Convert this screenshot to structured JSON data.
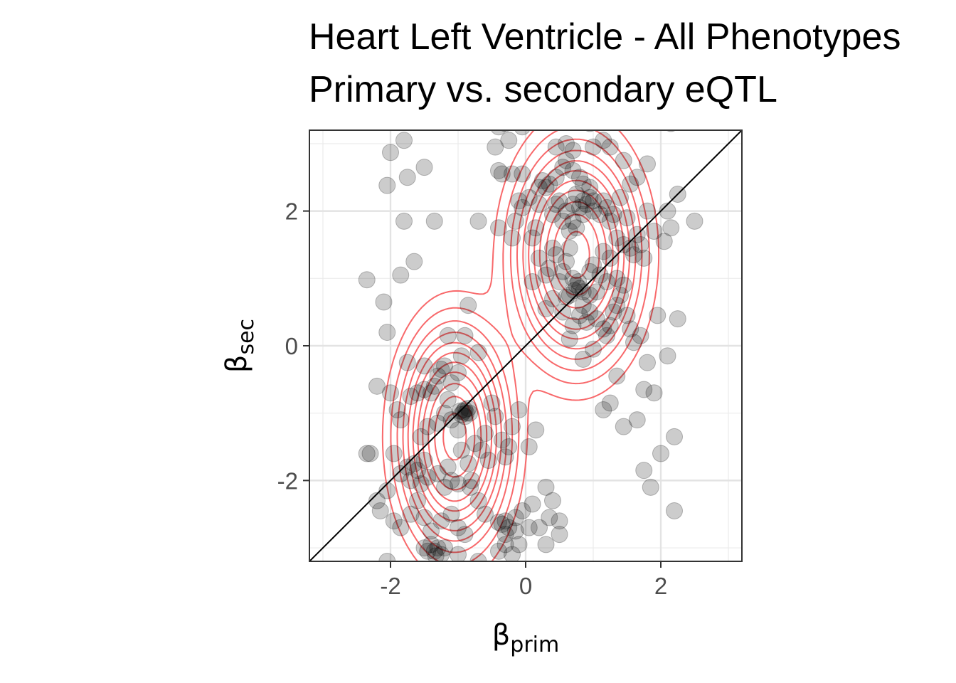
{
  "title": "Heart Left Ventricle - All Phenotypes",
  "subtitle": "Primary vs. secondary eQTL",
  "chart_data": {
    "type": "scatter",
    "title": "Heart Left Ventricle - All Phenotypes",
    "subtitle": "Primary vs. secondary eQTL",
    "xlabel": {
      "symbol": "β",
      "subscript": "prim"
    },
    "ylabel": {
      "symbol": "β",
      "subscript": "sec"
    },
    "xlim": [
      -3.2,
      3.2
    ],
    "ylim": [
      -3.2,
      3.2
    ],
    "xticks": [
      -2,
      0,
      2
    ],
    "yticks": [
      -2,
      0,
      2
    ],
    "xtick_labels": [
      "-2",
      "0",
      "2"
    ],
    "ytick_labels": [
      "-2",
      "0",
      "2"
    ],
    "grid": true,
    "reference_line": {
      "type": "identity",
      "slope": 1,
      "intercept": 0,
      "color": "#000000"
    },
    "point_color": "#000000",
    "point_opacity": 0.2,
    "contour_color": "#f8696b",
    "density_clusters": [
      {
        "cx": -1.05,
        "cy": -1.35,
        "sx": 0.42,
        "sy": 0.85
      },
      {
        "cx": 0.75,
        "cy": 1.35,
        "sx": 0.48,
        "sy": 0.85
      }
    ],
    "contour_levels": [
      0.04,
      0.08,
      0.13,
      0.19,
      0.26,
      0.34,
      0.43,
      0.53,
      0.65,
      0.78,
      0.92
    ],
    "points": [
      [
        -0.9,
        -0.95
      ],
      [
        -0.88,
        -1.0
      ],
      [
        -0.92,
        -0.98
      ],
      [
        -0.95,
        -1.02
      ],
      [
        -0.85,
        -0.93
      ],
      [
        -0.9,
        -1.05
      ],
      [
        -0.97,
        -0.97
      ],
      [
        -0.83,
        -1.0
      ],
      [
        -1.35,
        -3.05
      ],
      [
        -1.3,
        -3.0
      ],
      [
        -1.25,
        -3.1
      ],
      [
        -1.4,
        -2.95
      ],
      [
        -1.2,
        -3.0
      ],
      [
        -1.45,
        -3.05
      ],
      [
        -1.33,
        -3.12
      ],
      [
        -0.35,
        -2.65
      ],
      [
        -0.3,
        -2.6
      ],
      [
        -0.25,
        -2.7
      ],
      [
        -0.4,
        -2.62
      ],
      [
        -0.15,
        -2.75
      ],
      [
        -1.75,
        -1.8
      ],
      [
        -1.65,
        -1.75
      ],
      [
        -1.85,
        -1.9
      ],
      [
        -1.6,
        -1.85
      ],
      [
        -1.5,
        -1.7
      ],
      [
        -1.7,
        -2.0
      ],
      [
        -1.55,
        -2.05
      ],
      [
        -1.45,
        -1.95
      ],
      [
        -1.2,
        -2.1
      ],
      [
        -1.1,
        -2.0
      ],
      [
        -1.3,
        -1.9
      ],
      [
        -1.0,
        -2.05
      ],
      [
        -0.8,
        -2.0
      ],
      [
        -0.82,
        -2.1
      ],
      [
        -1.15,
        -1.8
      ],
      [
        -2.3,
        -1.6
      ],
      [
        -2.05,
        -2.15
      ],
      [
        -2.2,
        -2.3
      ],
      [
        -2.15,
        -2.45
      ],
      [
        -1.95,
        -2.6
      ],
      [
        -1.85,
        -2.7
      ],
      [
        -1.7,
        -2.5
      ],
      [
        -1.6,
        -2.3
      ],
      [
        -1.5,
        -2.55
      ],
      [
        -1.4,
        -2.75
      ],
      [
        -1.25,
        -2.6
      ],
      [
        -1.1,
        -2.5
      ],
      [
        -1.0,
        -2.7
      ],
      [
        -0.9,
        -2.8
      ],
      [
        -0.6,
        -2.5
      ],
      [
        -0.7,
        -2.3
      ],
      [
        -2.05,
        -3.2
      ],
      [
        -1.5,
        -3.0
      ],
      [
        -1.0,
        -3.1
      ],
      [
        -0.4,
        -3.05
      ],
      [
        -0.2,
        -3.1
      ],
      [
        -0.3,
        -2.95
      ],
      [
        -0.7,
        -3.2
      ],
      [
        -1.95,
        -1.6
      ],
      [
        -1.85,
        -1.1
      ],
      [
        -1.7,
        -0.75
      ],
      [
        -1.6,
        -0.7
      ],
      [
        -1.5,
        -0.65
      ],
      [
        -1.4,
        -0.7
      ],
      [
        -1.35,
        -0.6
      ],
      [
        -1.3,
        -0.45
      ],
      [
        -1.25,
        -0.35
      ],
      [
        -1.2,
        -0.3
      ],
      [
        -1.15,
        -0.8
      ],
      [
        -1.1,
        -1.1
      ],
      [
        -1.0,
        -1.25
      ],
      [
        -0.95,
        -1.55
      ],
      [
        -0.85,
        -1.75
      ],
      [
        -0.75,
        -1.45
      ],
      [
        -0.6,
        -1.3
      ],
      [
        -0.5,
        -0.85
      ],
      [
        -0.45,
        -1.05
      ],
      [
        -0.35,
        -1.4
      ],
      [
        -0.3,
        -1.65
      ],
      [
        -0.55,
        -1.7
      ],
      [
        -0.65,
        -1.55
      ],
      [
        -1.9,
        -0.95
      ],
      [
        -2.0,
        -0.7
      ],
      [
        -2.2,
        -0.6
      ],
      [
        -2.35,
        -1.6
      ],
      [
        -1.55,
        -1.35
      ],
      [
        -1.45,
        -1.2
      ],
      [
        -1.3,
        -1.15
      ],
      [
        -1.2,
        -1.0
      ],
      [
        -1.1,
        -0.55
      ],
      [
        -1.0,
        -0.4
      ],
      [
        -0.9,
        0.15
      ],
      [
        -1.15,
        0.15
      ],
      [
        -0.95,
        -0.15
      ],
      [
        -0.7,
        -0.1
      ],
      [
        -1.5,
        -0.3
      ],
      [
        -1.75,
        -0.25
      ],
      [
        -2.05,
        0.2
      ],
      [
        -2.1,
        0.65
      ],
      [
        -1.85,
        1.05
      ],
      [
        -1.65,
        1.25
      ],
      [
        -2.35,
        0.98
      ],
      [
        -1.8,
        1.85
      ],
      [
        -1.35,
        1.85
      ],
      [
        -2.05,
        2.38
      ],
      [
        -1.75,
        2.5
      ],
      [
        -1.5,
        2.65
      ],
      [
        -2.0,
        2.87
      ],
      [
        -1.8,
        3.05
      ],
      [
        -0.85,
        0.6
      ],
      [
        -0.1,
        -0.95
      ],
      [
        0.05,
        -1.5
      ],
      [
        -0.2,
        -1.2
      ],
      [
        0.15,
        -1.25
      ],
      [
        -0.25,
        -1.5
      ],
      [
        0.2,
        -2.7
      ],
      [
        0.3,
        -2.95
      ],
      [
        0.5,
        -2.8
      ],
      [
        0.35,
        -2.55
      ],
      [
        0.4,
        -2.3
      ],
      [
        0.5,
        -2.6
      ],
      [
        0.3,
        -2.1
      ],
      [
        0.1,
        -2.35
      ],
      [
        -0.05,
        -2.45
      ],
      [
        -0.15,
        -2.55
      ],
      [
        0.05,
        -2.7
      ],
      [
        -0.1,
        -2.95
      ],
      [
        -0.3,
        -2.8
      ],
      [
        0.75,
        0.9
      ],
      [
        0.8,
        0.85
      ],
      [
        0.72,
        0.82
      ],
      [
        0.78,
        0.95
      ],
      [
        0.85,
        0.8
      ],
      [
        0.7,
        1.0
      ],
      [
        0.65,
        0.75
      ],
      [
        0.6,
        0.72
      ],
      [
        0.9,
        2.1
      ],
      [
        0.85,
        2.15
      ],
      [
        0.95,
        2.2
      ],
      [
        0.8,
        2.05
      ],
      [
        1.0,
        2.15
      ],
      [
        0.75,
        2.25
      ],
      [
        0.7,
        2.1
      ],
      [
        0.6,
        2.0
      ],
      [
        0.5,
        2.15
      ],
      [
        0.45,
        2.1
      ],
      [
        0.4,
        1.95
      ],
      [
        0.55,
        1.85
      ],
      [
        0.65,
        1.7
      ],
      [
        0.7,
        1.85
      ],
      [
        0.75,
        1.75
      ],
      [
        0.85,
        1.95
      ],
      [
        0.2,
        2.1
      ],
      [
        0.15,
        1.75
      ],
      [
        0.05,
        2.2
      ],
      [
        -0.05,
        2.05
      ],
      [
        -0.1,
        2.15
      ],
      [
        -0.15,
        1.85
      ],
      [
        0.1,
        1.6
      ],
      [
        0.2,
        1.3
      ],
      [
        0.35,
        1.15
      ],
      [
        0.45,
        1.35
      ],
      [
        0.55,
        1.1
      ],
      [
        0.6,
        1.25
      ],
      [
        0.65,
        1.45
      ],
      [
        0.5,
        0.95
      ],
      [
        0.4,
        0.7
      ],
      [
        0.3,
        0.55
      ],
      [
        0.85,
        2.4
      ],
      [
        0.8,
        2.5
      ],
      [
        0.7,
        2.6
      ],
      [
        0.6,
        2.75
      ],
      [
        0.55,
        2.65
      ],
      [
        0.45,
        2.5
      ],
      [
        0.35,
        2.4
      ],
      [
        0.25,
        2.45
      ],
      [
        0.95,
        2.35
      ],
      [
        1.0,
        2.0
      ],
      [
        1.1,
        1.95
      ],
      [
        1.15,
        2.15
      ],
      [
        1.2,
        2.05
      ],
      [
        1.3,
        1.95
      ],
      [
        1.25,
        1.85
      ],
      [
        1.35,
        1.6
      ],
      [
        1.45,
        1.5
      ],
      [
        1.55,
        1.45
      ],
      [
        1.6,
        1.35
      ],
      [
        1.7,
        1.5
      ],
      [
        1.75,
        1.3
      ],
      [
        1.65,
        1.65
      ],
      [
        1.5,
        1.9
      ],
      [
        1.4,
        2.2
      ],
      [
        1.55,
        2.4
      ],
      [
        1.8,
        2.0
      ],
      [
        1.9,
        1.7
      ],
      [
        2.1,
        2.0
      ],
      [
        2.25,
        2.25
      ],
      [
        2.15,
        1.75
      ],
      [
        2.5,
        1.85
      ],
      [
        2.05,
        1.55
      ],
      [
        0.85,
        0.6
      ],
      [
        0.9,
        0.35
      ],
      [
        0.95,
        0.5
      ],
      [
        1.05,
        0.4
      ],
      [
        1.15,
        0.25
      ],
      [
        1.2,
        0.15
      ],
      [
        1.25,
        0.3
      ],
      [
        1.3,
        0.5
      ],
      [
        1.35,
        0.6
      ],
      [
        1.4,
        0.75
      ],
      [
        1.45,
        0.9
      ],
      [
        1.5,
        0.45
      ],
      [
        1.55,
        0.25
      ],
      [
        1.6,
        0.05
      ],
      [
        1.7,
        0.15
      ],
      [
        1.8,
        -0.25
      ],
      [
        1.9,
        -0.7
      ],
      [
        1.75,
        -0.65
      ],
      [
        1.35,
        -0.45
      ],
      [
        1.15,
        -0.95
      ],
      [
        1.25,
        -0.85
      ],
      [
        1.45,
        -1.2
      ],
      [
        1.65,
        -1.1
      ],
      [
        2.0,
        -1.6
      ],
      [
        1.75,
        -1.85
      ],
      [
        1.85,
        -2.1
      ],
      [
        2.2,
        -1.35
      ],
      [
        2.2,
        -2.45
      ],
      [
        1.25,
        -3.45
      ],
      [
        1.0,
        1.2
      ],
      [
        1.1,
        1.05
      ],
      [
        1.2,
        0.95
      ],
      [
        1.05,
        0.8
      ],
      [
        0.95,
        1.1
      ],
      [
        1.25,
        1.3
      ],
      [
        1.35,
        1.0
      ],
      [
        1.15,
        1.4
      ],
      [
        0.4,
        1.45
      ],
      [
        0.3,
        1.05
      ],
      [
        0.1,
        0.95
      ],
      [
        0.55,
        0.5
      ],
      [
        0.7,
        0.3
      ],
      [
        0.8,
        0.45
      ],
      [
        0.95,
        0.75
      ],
      [
        0.65,
        0.1
      ],
      [
        0.85,
        -0.2
      ],
      [
        1.0,
        -0.05
      ],
      [
        0.3,
        2.35
      ],
      [
        0.2,
        2.35
      ],
      [
        -0.05,
        2.55
      ],
      [
        -0.2,
        2.55
      ],
      [
        -0.35,
        2.55
      ],
      [
        -0.4,
        2.6
      ],
      [
        -0.45,
        2.95
      ],
      [
        -0.25,
        3.05
      ],
      [
        -0.05,
        3.25
      ],
      [
        -0.4,
        3.25
      ],
      [
        -0.3,
        3.3
      ],
      [
        0.45,
        2.95
      ],
      [
        0.7,
        2.9
      ],
      [
        1.0,
        2.95
      ],
      [
        1.15,
        3.05
      ],
      [
        1.25,
        2.95
      ],
      [
        1.45,
        2.75
      ],
      [
        1.65,
        2.5
      ],
      [
        1.8,
        2.7
      ],
      [
        2.15,
        3.3
      ],
      [
        0.95,
        3.3
      ],
      [
        0.6,
        3.0
      ],
      [
        -0.7,
        1.85
      ],
      [
        -0.4,
        1.75
      ],
      [
        -0.2,
        1.6
      ],
      [
        1.95,
        0.45
      ],
      [
        2.25,
        0.4
      ],
      [
        2.1,
        -0.15
      ]
    ]
  }
}
